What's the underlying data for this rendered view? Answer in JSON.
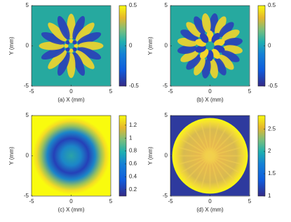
{
  "chart_data": [
    {
      "type": "heatmap",
      "xlabel": "(a) X (mm)",
      "ylabel": "Y (mm)",
      "xlim": [
        -5,
        5
      ],
      "ylim": [
        -5,
        5
      ],
      "xticks": [
        -5,
        0,
        5
      ],
      "yticks": [
        -5,
        0,
        5
      ],
      "clim": [
        -0.5,
        0.5
      ],
      "cticks": [
        -0.5,
        0,
        0.5
      ],
      "colormap": "parula"
    },
    {
      "type": "heatmap",
      "xlabel": "(b) X (mm)",
      "ylabel": "Y (mm)",
      "xlim": [
        -5,
        5
      ],
      "ylim": [
        -5,
        5
      ],
      "xticks": [
        -5,
        0,
        5
      ],
      "yticks": [
        -5,
        0,
        5
      ],
      "clim": [
        -0.5,
        0.5
      ],
      "cticks": [
        -0.5,
        0,
        0.5
      ],
      "colormap": "parula"
    },
    {
      "type": "heatmap",
      "xlabel": "(c) X (mm)",
      "ylabel": "Y (mm)",
      "xlim": [
        -5,
        5
      ],
      "ylim": [
        -5,
        5
      ],
      "xticks": [
        -5,
        0,
        5
      ],
      "yticks": [
        -5,
        0,
        5
      ],
      "clim": [
        0.1,
        1.35
      ],
      "cticks": [
        0.2,
        0.4,
        0.6,
        0.8,
        1,
        1.2
      ],
      "colormap": "parula"
    },
    {
      "type": "heatmap",
      "xlabel": "(d) X (mm)",
      "ylabel": "Y (mm)",
      "xlim": [
        -5,
        5
      ],
      "ylim": [
        -5,
        5
      ],
      "xticks": [
        -5,
        0,
        5
      ],
      "yticks": [
        -5,
        0,
        5
      ],
      "clim": [
        1,
        2.8
      ],
      "cticks": [
        1,
        1.5,
        2,
        2.5
      ],
      "colormap": "parula"
    }
  ]
}
